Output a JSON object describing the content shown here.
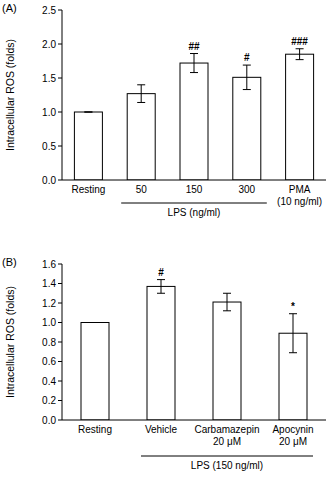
{
  "chart_data": [
    {
      "type": "bar",
      "title": "(A)",
      "y_label": "Intracellular ROS (folds)",
      "categories": [
        "Resting",
        "50",
        "150",
        "300",
        "PMA (10 ng/ml)"
      ],
      "values": [
        1.0,
        1.27,
        1.72,
        1.51,
        1.85
      ],
      "errors": [
        0,
        0.13,
        0.14,
        0.18,
        0.08
      ],
      "significance": [
        null,
        null,
        "##",
        "#",
        "###"
      ],
      "color": "#ffffff",
      "ylim": [
        0,
        2.5
      ],
      "yticks": [
        {
          "value": 0,
          "label": "0.0"
        },
        {
          "value": 0.5,
          "label": "0.5"
        },
        {
          "value": 1,
          "label": "1.0"
        },
        {
          "value": 1.5,
          "label": "1.5"
        },
        {
          "value": 2,
          "label": "2.0"
        },
        {
          "value": 2.5,
          "label": "2.5"
        }
      ],
      "grid": false,
      "annotations": [
        {
          "text": "LPS (ng/ml)",
          "categories": [
            "50",
            "150",
            "300"
          ]
        }
      ]
    },
    {
      "type": "bar",
      "title": "(B)",
      "y_label": "Intracellular ROS (folds)",
      "categories": [
        "Resting",
        "Vehicle",
        "Carbamazepin 20 μM",
        "Apocynin 20 μM"
      ],
      "values": [
        1.0,
        1.37,
        1.21,
        0.89
      ],
      "errors": [
        0,
        0.07,
        0.09,
        0.2
      ],
      "significance": [
        null,
        "#",
        null,
        "*"
      ],
      "color": "#ffffff",
      "ylim": [
        0,
        1.6
      ],
      "yticks": [
        {
          "value": 0,
          "label": "0.0"
        },
        {
          "value": 0.2,
          "label": "0.2"
        },
        {
          "value": 0.4,
          "label": "0.4"
        },
        {
          "value": 0.6,
          "label": "0.6"
        },
        {
          "value": 0.8,
          "label": "0.8"
        },
        {
          "value": 1,
          "label": "1.0"
        },
        {
          "value": 1.2,
          "label": "1.2"
        },
        {
          "value": 1.4,
          "label": "1.4"
        },
        {
          "value": 1.6,
          "label": "1.6"
        }
      ],
      "grid": false,
      "annotations": [
        {
          "text": "LPS (150 ng/ml)",
          "categories": [
            "Vehicle",
            "Carbamazepin 20 μM",
            "Apocynin 20 μM"
          ]
        }
      ]
    }
  ]
}
